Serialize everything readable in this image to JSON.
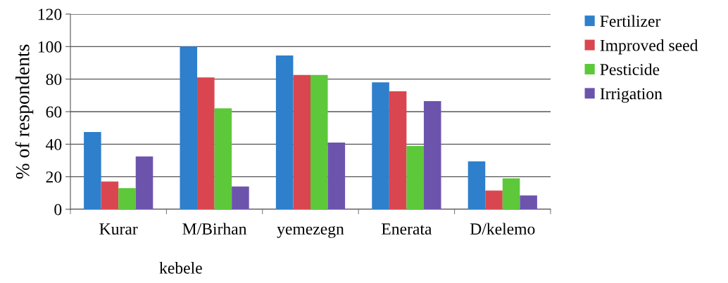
{
  "chart_data": {
    "type": "bar",
    "xlabel": "kebele",
    "ylabel": "% of respondents",
    "categories": [
      "Kurar",
      "M/Birhan",
      "yemezegn",
      "Enerata",
      "D/kelemo"
    ],
    "series": [
      {
        "name": "Fertilizer",
        "color": "#2e7fcc",
        "values": [
          47.5,
          100,
          94.5,
          78,
          29.5
        ]
      },
      {
        "name": "Improved seed",
        "color": "#d9464f",
        "values": [
          17,
          81,
          82.5,
          72.5,
          11.5
        ]
      },
      {
        "name": "Pesticide",
        "color": "#5cc83a",
        "values": [
          13,
          62,
          82.5,
          39,
          19
        ]
      },
      {
        "name": "Irrigation",
        "color": "#6c54ad",
        "values": [
          32.5,
          14,
          41,
          66.5,
          8.5
        ]
      }
    ],
    "ylim": [
      0,
      120
    ],
    "yticks": [
      0,
      20,
      40,
      60,
      80,
      100,
      120
    ],
    "grid": "y",
    "legend": "right"
  }
}
